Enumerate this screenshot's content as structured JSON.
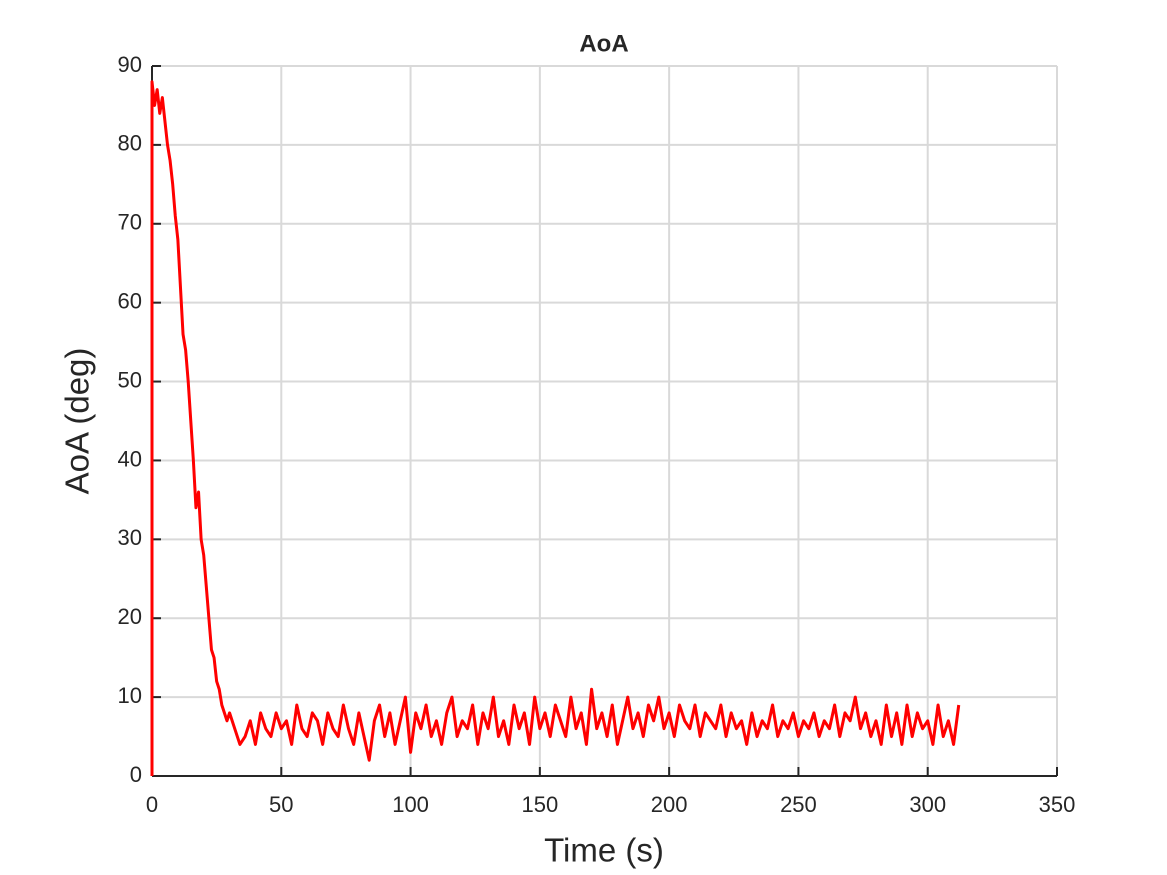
{
  "chart_data": {
    "type": "line",
    "title": "AoA",
    "x_label": "Time (s)",
    "y_label": "AoA (deg)",
    "xlim": [
      0,
      350
    ],
    "xticks": [
      0,
      50,
      100,
      150,
      200,
      250,
      300,
      350
    ],
    "ylim": [
      0,
      90
    ],
    "yticks": [
      0,
      10,
      20,
      30,
      40,
      50,
      60,
      70,
      80,
      90
    ],
    "grid": true,
    "x": [
      0,
      0,
      1,
      2,
      3,
      4,
      5,
      6,
      7,
      8,
      9,
      10,
      11,
      12,
      13,
      14,
      15,
      16,
      17,
      18,
      19,
      20,
      21,
      22,
      23,
      24,
      25,
      26,
      27,
      28,
      29,
      30,
      32,
      34,
      36,
      38,
      40,
      42,
      44,
      46,
      48,
      50,
      52,
      54,
      56,
      58,
      60,
      62,
      64,
      66,
      68,
      70,
      72,
      74,
      76,
      78,
      80,
      82,
      84,
      86,
      88,
      90,
      92,
      94,
      96,
      98,
      100,
      102,
      104,
      106,
      108,
      110,
      112,
      114,
      116,
      118,
      120,
      122,
      124,
      126,
      128,
      130,
      132,
      134,
      136,
      138,
      140,
      142,
      144,
      146,
      148,
      150,
      152,
      154,
      156,
      158,
      160,
      162,
      164,
      166,
      168,
      170,
      172,
      174,
      176,
      178,
      180,
      182,
      184,
      186,
      188,
      190,
      192,
      194,
      196,
      198,
      200,
      202,
      204,
      206,
      208,
      210,
      212,
      214,
      216,
      218,
      220,
      222,
      224,
      226,
      228,
      230,
      232,
      234,
      236,
      238,
      240,
      242,
      244,
      246,
      248,
      250,
      252,
      254,
      256,
      258,
      260,
      262,
      264,
      266,
      268,
      270,
      272,
      274,
      276,
      278,
      280,
      282,
      284,
      286,
      288,
      290,
      292,
      294,
      296,
      298,
      300,
      302,
      304,
      306,
      308,
      310,
      312
    ],
    "series": [
      {
        "name": "AoA",
        "color": "#ff0000",
        "values": [
          0,
          88,
          85,
          87,
          84,
          86,
          83,
          80,
          78,
          75,
          71,
          68,
          62,
          56,
          54,
          50,
          45,
          40,
          34,
          36,
          30,
          28,
          24,
          20,
          16,
          15,
          12,
          11,
          9,
          8,
          7,
          8,
          6,
          4,
          5,
          7,
          4,
          8,
          6,
          5,
          8,
          6,
          7,
          4,
          9,
          6,
          5,
          8,
          7,
          4,
          8,
          6,
          5,
          9,
          6,
          4,
          8,
          5,
          2,
          7,
          9,
          5,
          8,
          4,
          7,
          10,
          3,
          8,
          6,
          9,
          5,
          7,
          4,
          8,
          10,
          5,
          7,
          6,
          9,
          4,
          8,
          6,
          10,
          5,
          7,
          4,
          9,
          6,
          8,
          4,
          10,
          6,
          8,
          5,
          9,
          7,
          5,
          10,
          6,
          8,
          4,
          11,
          6,
          8,
          5,
          9,
          4,
          7,
          10,
          6,
          8,
          5,
          9,
          7,
          10,
          6,
          8,
          5,
          9,
          7,
          6,
          9,
          5,
          8,
          7,
          6,
          9,
          5,
          8,
          6,
          7,
          4,
          8,
          5,
          7,
          6,
          9,
          5,
          7,
          6,
          8,
          5,
          7,
          6,
          8,
          5,
          7,
          6,
          9,
          5,
          8,
          7,
          10,
          6,
          8,
          5,
          7,
          4,
          9,
          5,
          8,
          4,
          9,
          5,
          8,
          6,
          7,
          4,
          9,
          5,
          7,
          4,
          9
        ]
      }
    ]
  }
}
